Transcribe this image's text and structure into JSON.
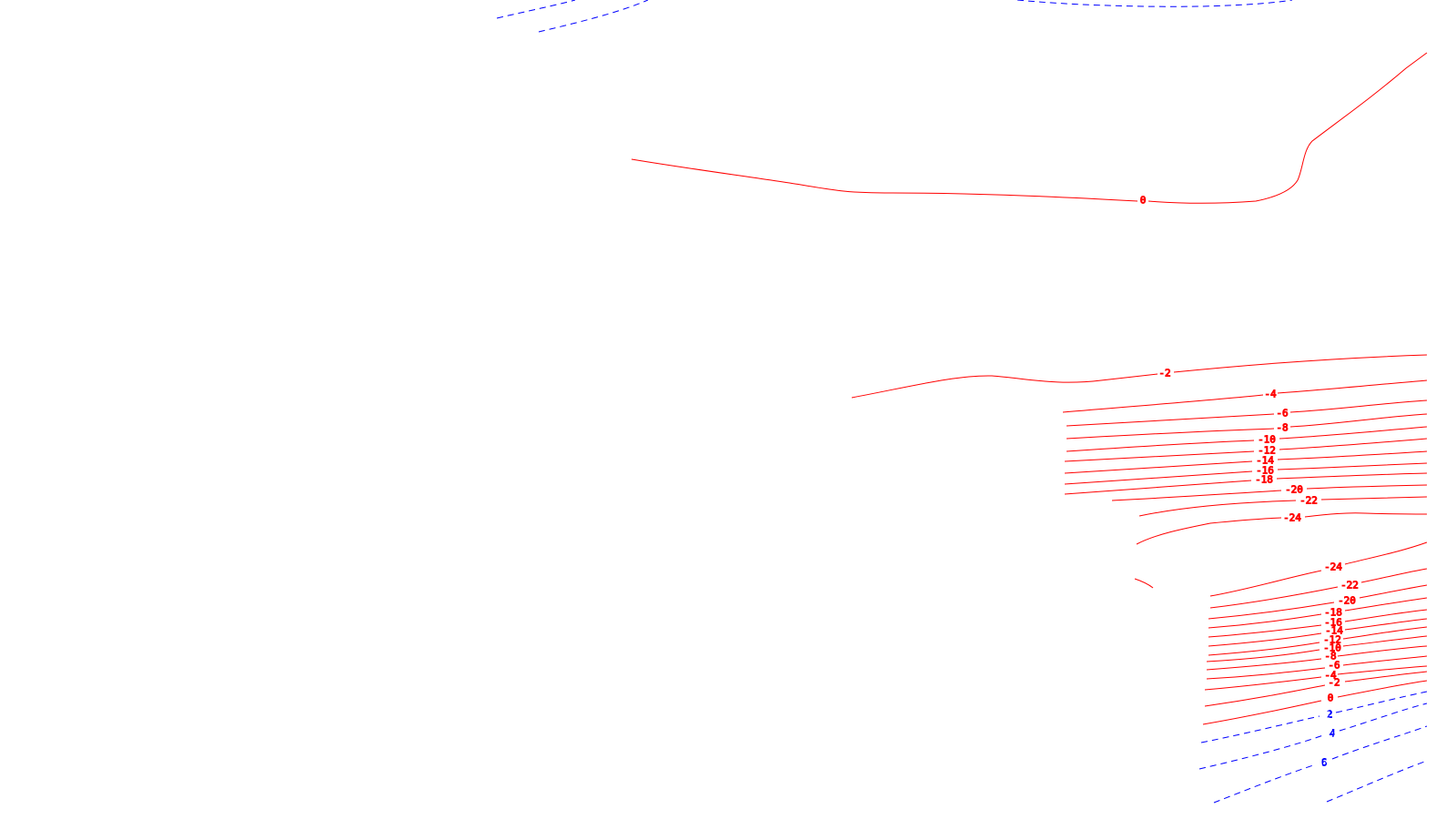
{
  "colors": {
    "background": "#ffffff",
    "positive": "#ff0000",
    "negative": "#0000ff"
  },
  "line_styles": {
    "positive": "solid",
    "negative": "dashed"
  },
  "contour_labels": [
    {
      "id": "top-0",
      "text": "0",
      "sign": "positive"
    },
    {
      "id": "upper-m2",
      "text": "-2",
      "sign": "positive"
    },
    {
      "id": "upper-m4",
      "text": "-4",
      "sign": "positive"
    },
    {
      "id": "upper-m6",
      "text": "-6",
      "sign": "positive"
    },
    {
      "id": "upper-m8",
      "text": "-8",
      "sign": "positive"
    },
    {
      "id": "upper-m10",
      "text": "-10",
      "sign": "positive"
    },
    {
      "id": "upper-m12",
      "text": "-12",
      "sign": "positive"
    },
    {
      "id": "upper-m14",
      "text": "-14",
      "sign": "positive"
    },
    {
      "id": "upper-m16",
      "text": "-16",
      "sign": "positive"
    },
    {
      "id": "upper-m18",
      "text": "-18",
      "sign": "positive"
    },
    {
      "id": "upper-m20",
      "text": "-20",
      "sign": "positive"
    },
    {
      "id": "upper-m22",
      "text": "-22",
      "sign": "positive"
    },
    {
      "id": "upper-m24",
      "text": "-24",
      "sign": "positive"
    },
    {
      "id": "lower-m24",
      "text": "-24",
      "sign": "positive"
    },
    {
      "id": "lower-m22",
      "text": "-22",
      "sign": "positive"
    },
    {
      "id": "lower-m20",
      "text": "-20",
      "sign": "positive"
    },
    {
      "id": "lower-m18",
      "text": "-18",
      "sign": "positive"
    },
    {
      "id": "lower-m16",
      "text": "-16",
      "sign": "positive"
    },
    {
      "id": "lower-m14",
      "text": "-14",
      "sign": "positive"
    },
    {
      "id": "lower-m12",
      "text": "-12",
      "sign": "positive"
    },
    {
      "id": "lower-m10",
      "text": "-10",
      "sign": "positive"
    },
    {
      "id": "lower-m8",
      "text": "-8",
      "sign": "positive"
    },
    {
      "id": "lower-m6",
      "text": "-6",
      "sign": "positive"
    },
    {
      "id": "lower-m4",
      "text": "-4",
      "sign": "positive"
    },
    {
      "id": "lower-m2",
      "text": "-2",
      "sign": "positive"
    },
    {
      "id": "lower-0",
      "text": "0",
      "sign": "positive"
    },
    {
      "id": "neg-2",
      "text": "2",
      "sign": "negative"
    },
    {
      "id": "neg-4",
      "text": "4",
      "sign": "negative"
    },
    {
      "id": "neg-6",
      "text": "6",
      "sign": "negative"
    }
  ]
}
